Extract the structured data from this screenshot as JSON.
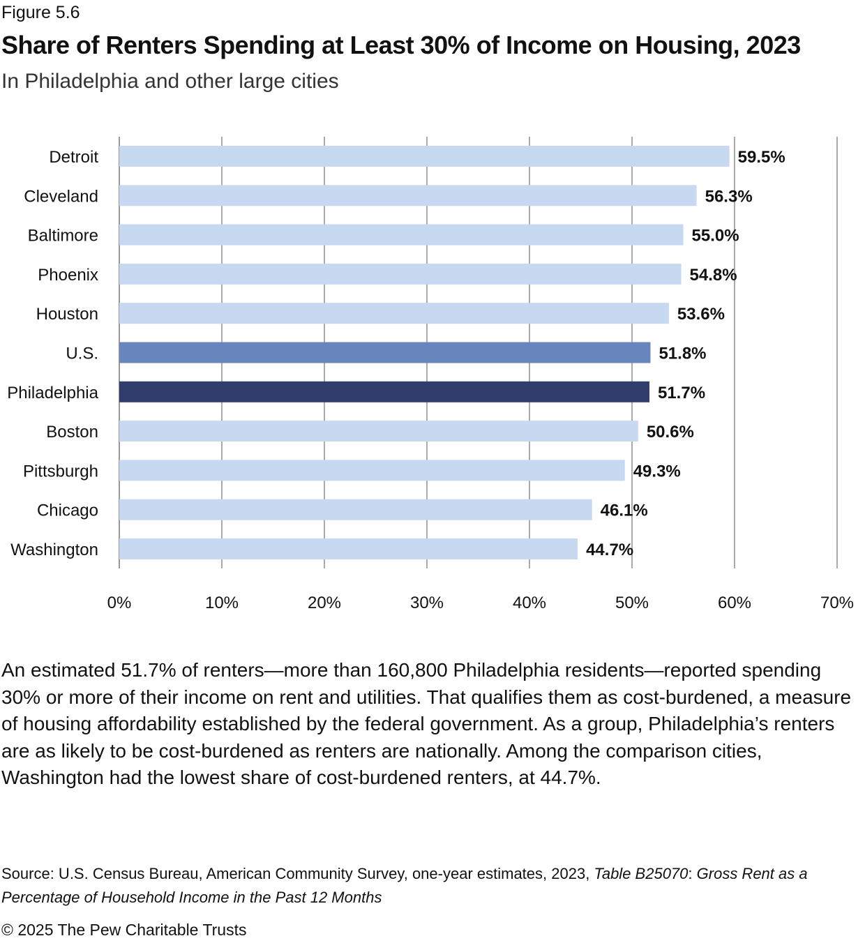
{
  "figure_label": "Figure 5.6",
  "chart_data": {
    "type": "bar",
    "orientation": "horizontal",
    "title": "Share of Renters Spending at Least 30% of Income on Housing, 2023",
    "subtitle": "In Philadelphia and other large cities",
    "categories": [
      "Detroit",
      "Cleveland",
      "Baltimore",
      "Phoenix",
      "Houston",
      "U.S.",
      "Philadelphia",
      "Boston",
      "Pittsburgh",
      "Chicago",
      "Washington"
    ],
    "values": [
      59.5,
      56.3,
      55.0,
      54.8,
      53.6,
      51.8,
      51.7,
      50.6,
      49.3,
      46.1,
      44.7
    ],
    "data_labels": [
      "59.5%",
      "56.3%",
      "55.0%",
      "54.8%",
      "53.6%",
      "51.8%",
      "51.7%",
      "50.6%",
      "49.3%",
      "46.1%",
      "44.7%"
    ],
    "xlim": [
      0,
      70
    ],
    "xticks": [
      0,
      10,
      20,
      30,
      40,
      50,
      60,
      70
    ],
    "xtick_labels": [
      "0%",
      "10%",
      "20%",
      "30%",
      "40%",
      "50%",
      "60%",
      "70%"
    ],
    "grid": true,
    "colors": {
      "default": "#c6d9f0",
      "U.S.": "#6885be",
      "Philadelphia": "#313d6c"
    }
  },
  "body_text": "An estimated 51.7% of renters—more than 160,800 Philadelphia residents—reported spending 30% or more of their income on rent and utilities. That qualifies them as cost-burdened, a measure of housing affordability established by the federal government. As a group, Philadelphia’s renters are as likely to be cost-burdened as renters are nationally. Among the comparison cities, Washington had the lowest share of cost-burdened renters, at 44.7%.",
  "source": {
    "prefix": "Source: U.S. Census Bureau, American Community Survey, one-year estimates, 2023, ",
    "table": "Table B25070",
    "colon": ": ",
    "table_title": "Gross Rent as a Percentage of Household Income in the Past 12 Months"
  },
  "copyright": "© 2025 The Pew Charitable Trusts"
}
